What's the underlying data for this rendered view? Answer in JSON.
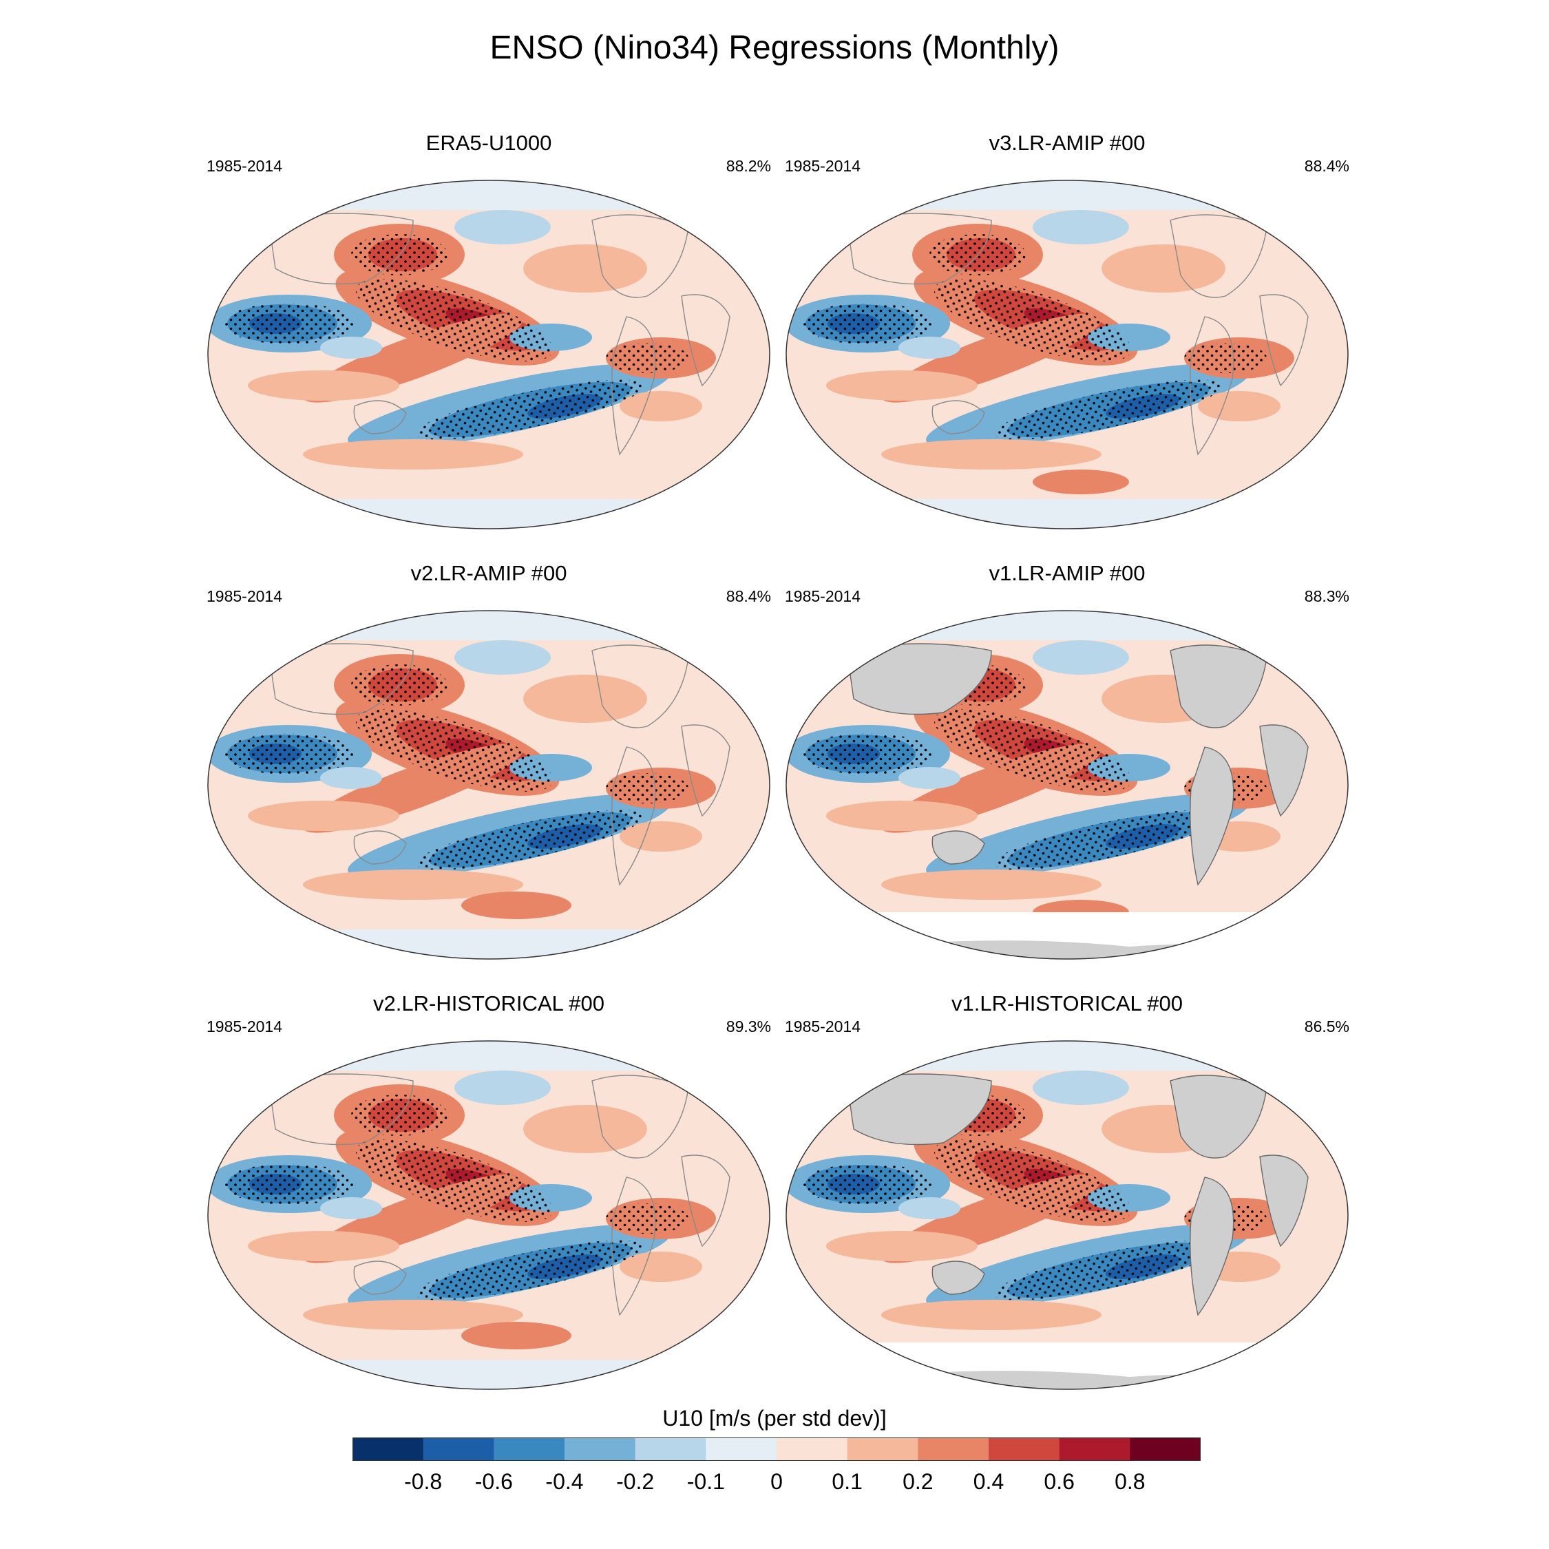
{
  "title": "ENSO (Nino34) Regressions (Monthly)",
  "panels": [
    {
      "title": "ERA5-U1000",
      "period": "1985-2014",
      "pct": "88.2%",
      "land_masked": false
    },
    {
      "title": "v3.LR-AMIP  #00",
      "period": "1985-2014",
      "pct": "88.4%",
      "land_masked": false
    },
    {
      "title": "v2.LR-AMIP  #00",
      "period": "1985-2014",
      "pct": "88.4%",
      "land_masked": false
    },
    {
      "title": "v1.LR-AMIP  #00",
      "period": "1985-2014",
      "pct": "88.3%",
      "land_masked": true
    },
    {
      "title": "v2.LR-HISTORICAL  #00",
      "period": "1985-2014",
      "pct": "89.3%",
      "land_masked": false
    },
    {
      "title": "v1.LR-HISTORICAL  #00",
      "period": "1985-2014",
      "pct": "86.5%",
      "land_masked": true
    }
  ],
  "colorbar": {
    "title": "U10 [m/s (per std dev)]",
    "tick_labels": [
      "-0.8",
      "-0.6",
      "-0.4",
      "-0.2",
      "-0.1",
      "0",
      "0.1",
      "0.2",
      "0.4",
      "0.6",
      "0.8"
    ],
    "colors": [
      "#08306b",
      "#1c5fa8",
      "#3a88c0",
      "#75b0d7",
      "#b8d6ea",
      "#e6eef5",
      "#fae2d7",
      "#f6b89a",
      "#e88567",
      "#d0473d",
      "#ad1a2b",
      "#6e0020"
    ]
  },
  "land_color": "#cfcfcf"
}
